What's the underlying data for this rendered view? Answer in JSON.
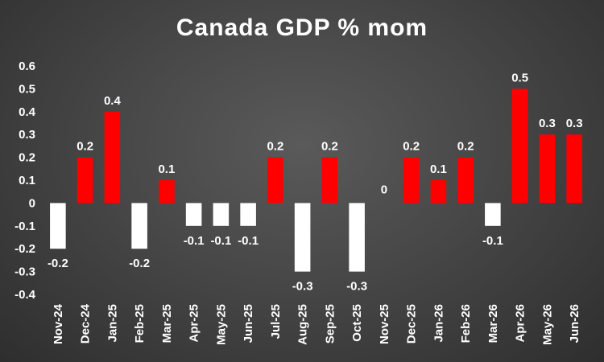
{
  "chart_data": {
    "type": "bar",
    "title": "Canada GDP % mom",
    "xlabel": "",
    "ylabel": "",
    "categories": [
      "Nov-24",
      "Dec-24",
      "Jan-25",
      "Feb-25",
      "Mar-25",
      "Apr-25",
      "May-25",
      "Jun-25",
      "Jul-25",
      "Aug-25",
      "Sep-25",
      "Oct-25",
      "Nov-25",
      "Dec-25",
      "Jan-26",
      "Feb-26",
      "Mar-26",
      "Apr-26",
      "May-26",
      "Jun-26"
    ],
    "values": [
      -0.2,
      0.2,
      0.4,
      -0.2,
      0.1,
      -0.1,
      -0.1,
      -0.1,
      0.2,
      -0.3,
      0.2,
      -0.3,
      0,
      0.2,
      0.1,
      0.2,
      -0.1,
      0.5,
      0.3,
      0.3
    ],
    "data_labels": [
      "-0.2",
      "0.2",
      "0.4",
      "-0.2",
      "0.1",
      "-0.1",
      "-0.1",
      "-0.1",
      "0.2",
      "-0.3",
      "0.2",
      "-0.3",
      "0",
      "0.2",
      "0.1",
      "0.2",
      "-0.1",
      "0.5",
      "0.3",
      "0.3"
    ],
    "ylim": [
      -0.4,
      0.6
    ],
    "yticks": [
      "-0.4",
      "-0.3",
      "-0.2",
      "-0.1",
      "0",
      "0.1",
      "0.2",
      "0.3",
      "0.4",
      "0.5",
      "0.6"
    ],
    "ytick_values": [
      -0.4,
      -0.3,
      -0.2,
      -0.1,
      0,
      0.1,
      0.2,
      0.3,
      0.4,
      0.5,
      0.6
    ],
    "grid": false,
    "legend": "none",
    "colors": {
      "positive": "#ff0000",
      "negative": "#ffffff",
      "background": "#474747",
      "text": "#ffffff"
    }
  }
}
